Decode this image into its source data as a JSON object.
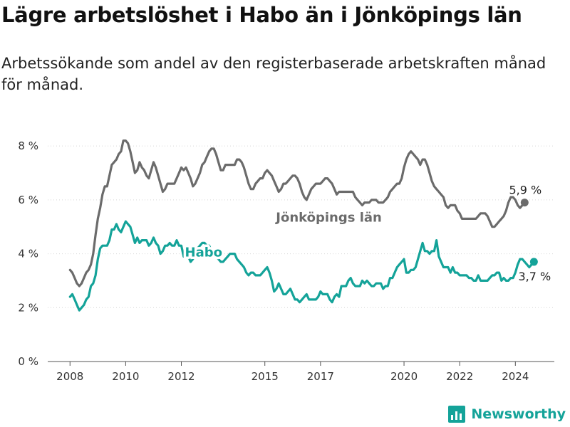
{
  "title": "Lägre arbetslöshet i Habo än i Jönköpings län",
  "subtitle": "Arbetssökande som andel av den registerbaserade arbetskraften månad för månad.",
  "brand": {
    "name": "Newsworthy",
    "color": "#14a399"
  },
  "chart_data": {
    "type": "line",
    "title": "Lägre arbetslöshet i Habo än i Jönköpings län",
    "xlabel": "",
    "ylabel": "",
    "x_start": 2008.0,
    "x_step": 0.0833333,
    "xlim": [
      2007.2,
      2025.4
    ],
    "ylim": [
      0,
      8.4
    ],
    "yticks": [
      0,
      2,
      4,
      6,
      8
    ],
    "ytick_labels": [
      "0 %",
      "2 %",
      "4 %",
      "6 %",
      "8 %"
    ],
    "xticks": [
      2008,
      2010,
      2012,
      2015,
      2017,
      2020,
      2022,
      2024
    ],
    "xtick_labels": [
      "2008",
      "2010",
      "2012",
      "2015",
      "2017",
      "2020",
      "2022",
      "2024"
    ],
    "grid": true,
    "series": [
      {
        "name": "Jönköpings län",
        "color": "#6b6b6b",
        "end_label": "5,9 %",
        "end_value": 5.9,
        "values": [
          3.4,
          3.3,
          3.1,
          2.9,
          2.8,
          2.9,
          3.1,
          3.3,
          3.4,
          3.6,
          4.0,
          4.7,
          5.3,
          5.7,
          6.2,
          6.5,
          6.5,
          6.9,
          7.3,
          7.4,
          7.5,
          7.7,
          7.8,
          8.2,
          8.2,
          8.1,
          7.8,
          7.4,
          7.0,
          7.1,
          7.4,
          7.2,
          7.1,
          6.9,
          6.8,
          7.1,
          7.4,
          7.2,
          6.9,
          6.6,
          6.3,
          6.4,
          6.6,
          6.6,
          6.6,
          6.6,
          6.8,
          7.0,
          7.2,
          7.1,
          7.2,
          7.0,
          6.8,
          6.5,
          6.6,
          6.8,
          7.0,
          7.3,
          7.4,
          7.6,
          7.8,
          7.9,
          7.9,
          7.7,
          7.4,
          7.1,
          7.1,
          7.3,
          7.3,
          7.3,
          7.3,
          7.3,
          7.5,
          7.5,
          7.4,
          7.2,
          6.9,
          6.6,
          6.4,
          6.4,
          6.6,
          6.7,
          6.8,
          6.8,
          7.0,
          7.1,
          7.0,
          6.9,
          6.7,
          6.5,
          6.3,
          6.4,
          6.6,
          6.6,
          6.7,
          6.8,
          6.9,
          6.9,
          6.8,
          6.6,
          6.3,
          6.1,
          6.0,
          6.2,
          6.4,
          6.5,
          6.6,
          6.6,
          6.6,
          6.7,
          6.8,
          6.8,
          6.7,
          6.6,
          6.4,
          6.2,
          6.3,
          6.3,
          6.3,
          6.3,
          6.3,
          6.3,
          6.3,
          6.1,
          6.0,
          5.9,
          5.8,
          5.9,
          5.9,
          5.9,
          6.0,
          6.0,
          6.0,
          5.9,
          5.9,
          5.9,
          6.0,
          6.1,
          6.3,
          6.4,
          6.5,
          6.6,
          6.6,
          6.8,
          7.2,
          7.5,
          7.7,
          7.8,
          7.7,
          7.6,
          7.5,
          7.3,
          7.5,
          7.5,
          7.3,
          7.0,
          6.7,
          6.5,
          6.4,
          6.3,
          6.2,
          6.1,
          5.8,
          5.7,
          5.8,
          5.8,
          5.8,
          5.6,
          5.5,
          5.3,
          5.3,
          5.3,
          5.3,
          5.3,
          5.3,
          5.3,
          5.4,
          5.5,
          5.5,
          5.5,
          5.4,
          5.2,
          5.0,
          5.0,
          5.1,
          5.2,
          5.3,
          5.4,
          5.6,
          5.9,
          6.1,
          6.1,
          6.0,
          5.8,
          5.7,
          5.8,
          5.9
        ]
      },
      {
        "name": "Habo",
        "color": "#14a399",
        "end_label": "3,7 %",
        "end_value": 3.7,
        "values": [
          2.4,
          2.5,
          2.3,
          2.1,
          1.9,
          2.0,
          2.1,
          2.3,
          2.4,
          2.8,
          2.9,
          3.2,
          3.8,
          4.2,
          4.3,
          4.3,
          4.3,
          4.5,
          4.9,
          4.9,
          5.1,
          4.9,
          4.8,
          5.0,
          5.2,
          5.1,
          5.0,
          4.7,
          4.4,
          4.6,
          4.4,
          4.5,
          4.5,
          4.5,
          4.3,
          4.4,
          4.6,
          4.4,
          4.3,
          4.0,
          4.1,
          4.3,
          4.3,
          4.4,
          4.3,
          4.3,
          4.5,
          4.3,
          4.3,
          3.9,
          4.0,
          3.9,
          3.7,
          3.8,
          4.1,
          4.2,
          4.3,
          4.4,
          4.4,
          4.3,
          4.3,
          4.1,
          4.0,
          3.9,
          3.8,
          3.7,
          3.7,
          3.8,
          3.9,
          4.0,
          4.0,
          4.0,
          3.8,
          3.7,
          3.6,
          3.5,
          3.3,
          3.2,
          3.3,
          3.3,
          3.2,
          3.2,
          3.2,
          3.3,
          3.4,
          3.5,
          3.3,
          3.0,
          2.6,
          2.7,
          2.9,
          2.7,
          2.5,
          2.5,
          2.6,
          2.7,
          2.5,
          2.3,
          2.3,
          2.2,
          2.3,
          2.4,
          2.5,
          2.3,
          2.3,
          2.3,
          2.3,
          2.4,
          2.6,
          2.5,
          2.5,
          2.5,
          2.3,
          2.2,
          2.4,
          2.5,
          2.4,
          2.8,
          2.8,
          2.8,
          3.0,
          3.1,
          2.9,
          2.8,
          2.8,
          2.8,
          3.0,
          2.9,
          3.0,
          2.9,
          2.8,
          2.8,
          2.9,
          2.9,
          2.9,
          2.7,
          2.8,
          2.8,
          3.1,
          3.1,
          3.3,
          3.5,
          3.6,
          3.7,
          3.8,
          3.3,
          3.3,
          3.4,
          3.4,
          3.5,
          3.8,
          4.1,
          4.4,
          4.1,
          4.1,
          4.0,
          4.1,
          4.1,
          4.5,
          3.9,
          3.7,
          3.5,
          3.5,
          3.5,
          3.3,
          3.5,
          3.3,
          3.3,
          3.2,
          3.2,
          3.2,
          3.2,
          3.1,
          3.1,
          3.0,
          3.0,
          3.2,
          3.0,
          3.0,
          3.0,
          3.0,
          3.1,
          3.2,
          3.2,
          3.3,
          3.3,
          3.0,
          3.1,
          3.0,
          3.0,
          3.1,
          3.1,
          3.3,
          3.6,
          3.8,
          3.8,
          3.7,
          3.6,
          3.5,
          3.6,
          3.7
        ]
      }
    ],
    "annotations": [
      {
        "text": "Jönköpings län",
        "series": "Jönköpings län",
        "x": 2017.3,
        "y": 5.35
      },
      {
        "text": "Habo",
        "series": "Habo",
        "x": 2012.8,
        "y": 4.05
      }
    ]
  }
}
